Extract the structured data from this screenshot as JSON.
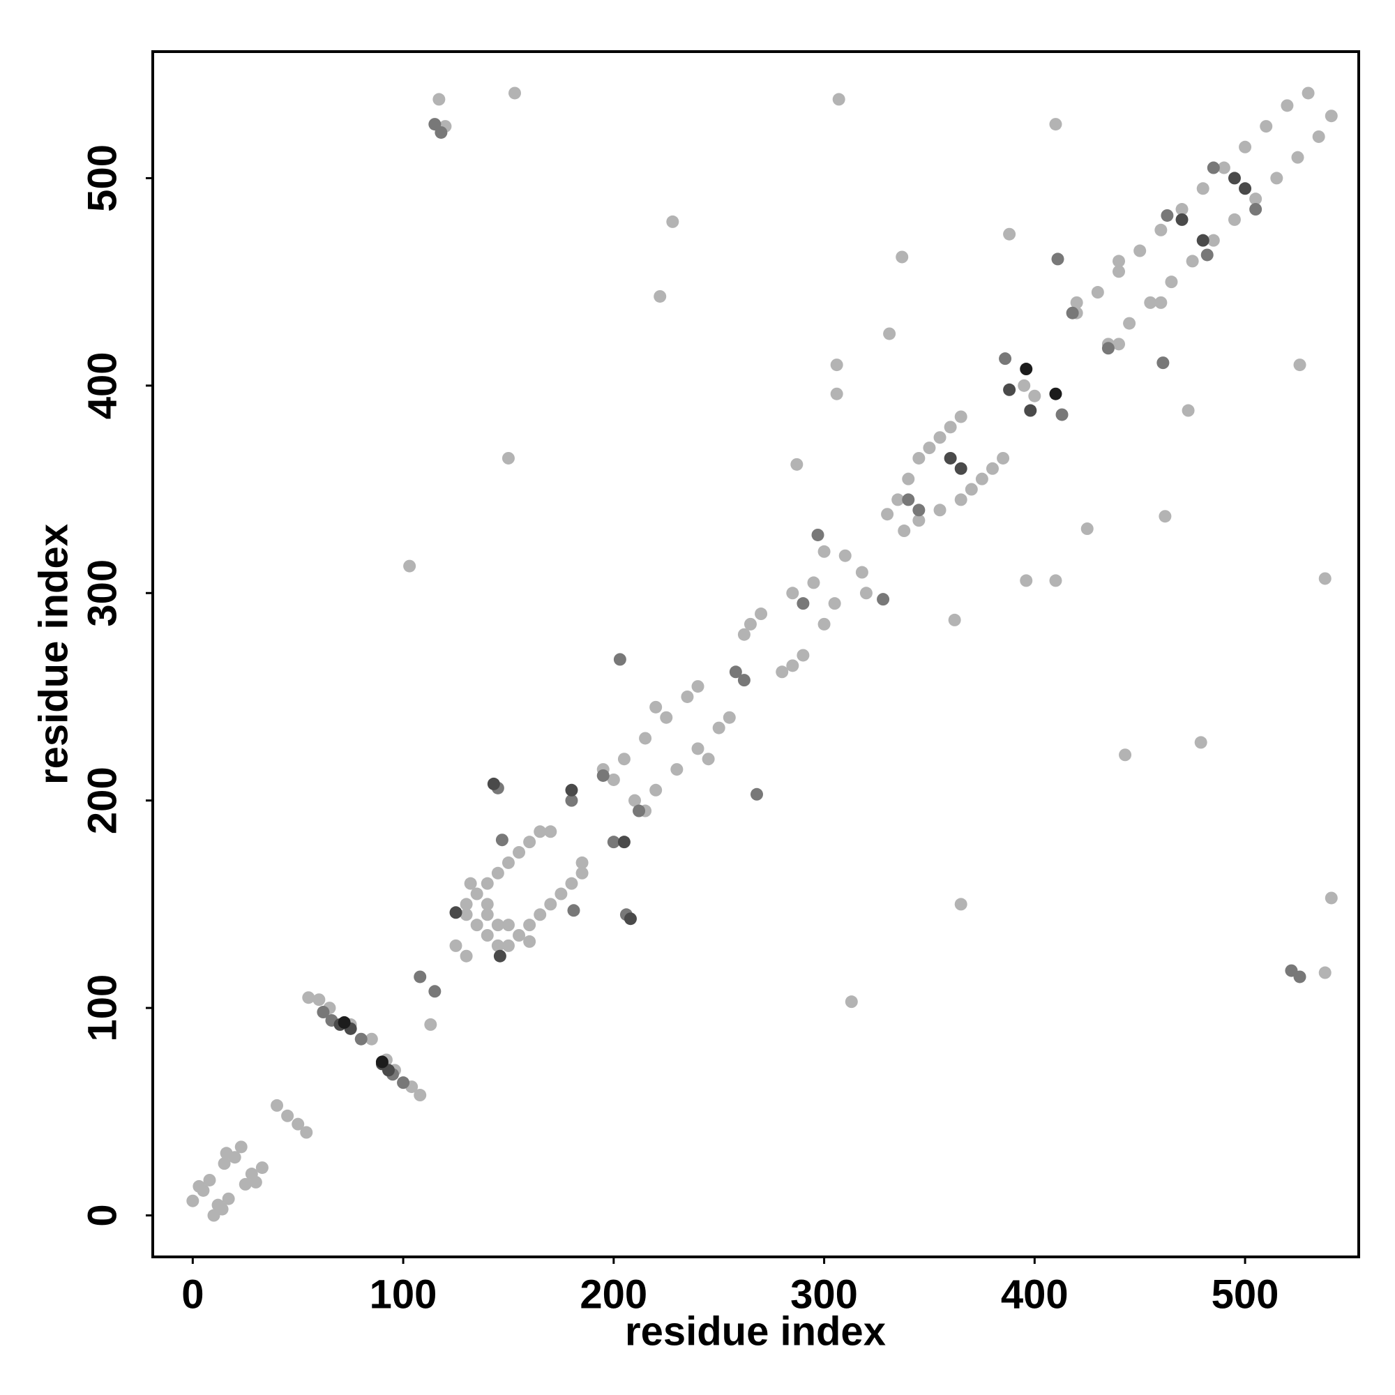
{
  "chart_data": {
    "type": "scatter",
    "xlabel": "residue index",
    "ylabel": "residue index",
    "xlim": [
      -19,
      554
    ],
    "ylim": [
      -20,
      561
    ],
    "xticks": [
      0,
      100,
      200,
      300,
      400,
      500
    ],
    "yticks": [
      0,
      100,
      200,
      300,
      400,
      500
    ],
    "series": [
      {
        "color": "#b3b3b3",
        "x": [
          5,
          12,
          8,
          17,
          15,
          25,
          20,
          28,
          0,
          10,
          14,
          3,
          30,
          16,
          33,
          23,
          40,
          45,
          50,
          54,
          55,
          60,
          65,
          85,
          96,
          104,
          108,
          75,
          92,
          113,
          125,
          130,
          135,
          140,
          130,
          150,
          135,
          155,
          140,
          160,
          145,
          165,
          150,
          170,
          155,
          175,
          160,
          180,
          165,
          185,
          140,
          150,
          145,
          140,
          130,
          145,
          170,
          185,
          132,
          160,
          200,
          210,
          205,
          220,
          215,
          230,
          225,
          240,
          235,
          250,
          220,
          245,
          195,
          215,
          240,
          255,
          265,
          285,
          270,
          290,
          285,
          300,
          295,
          305,
          310,
          318,
          300,
          320,
          262,
          280,
          335,
          345,
          340,
          355,
          345,
          365,
          350,
          370,
          355,
          375,
          360,
          380,
          365,
          385,
          338,
          330,
          395,
          400,
          420,
          435,
          430,
          445,
          440,
          455,
          450,
          465,
          460,
          475,
          470,
          485,
          480,
          495,
          490,
          505,
          500,
          515,
          510,
          525,
          520,
          535,
          530,
          541,
          440,
          420,
          460,
          440,
          117,
          538,
          120,
          153,
          541,
          307,
          538,
          410,
          526,
          228,
          479,
          222,
          443,
          337,
          462,
          313,
          103,
          150,
          365,
          396,
          306,
          410,
          306,
          331,
          425,
          362,
          287,
          473,
          388
        ],
        "y": [
          12,
          5,
          17,
          8,
          25,
          15,
          28,
          20,
          7,
          0,
          3,
          14,
          16,
          30,
          23,
          33,
          53,
          48,
          44,
          40,
          105,
          104,
          100,
          85,
          70,
          62,
          58,
          92,
          75,
          92,
          130,
          125,
          140,
          135,
          150,
          130,
          155,
          135,
          160,
          140,
          165,
          145,
          170,
          150,
          175,
          155,
          180,
          160,
          185,
          165,
          150,
          140,
          140,
          145,
          145,
          130,
          185,
          170,
          160,
          132,
          210,
          200,
          220,
          205,
          230,
          215,
          240,
          225,
          250,
          235,
          245,
          220,
          215,
          195,
          255,
          240,
          285,
          265,
          290,
          270,
          300,
          285,
          305,
          295,
          318,
          310,
          320,
          300,
          280,
          262,
          345,
          335,
          355,
          340,
          365,
          345,
          370,
          350,
          375,
          355,
          380,
          360,
          385,
          365,
          330,
          338,
          400,
          395,
          435,
          420,
          445,
          430,
          455,
          440,
          465,
          450,
          475,
          460,
          485,
          470,
          495,
          480,
          505,
          490,
          515,
          500,
          525,
          510,
          535,
          520,
          541,
          530,
          420,
          440,
          440,
          460,
          538,
          117,
          525,
          541,
          153,
          538,
          307,
          526,
          410,
          479,
          228,
          443,
          222,
          462,
          337,
          103,
          313,
          365,
          150,
          306,
          396,
          306,
          410,
          425,
          331,
          287,
          362,
          388,
          473
        ]
      },
      {
        "color": "#787878",
        "x": [
          62,
          66,
          80,
          95,
          100,
          108,
          115,
          145,
          206,
          147,
          181,
          180,
          200,
          212,
          195,
          258,
          262,
          268,
          203,
          297,
          328,
          290,
          345,
          340,
          386,
          413,
          411,
          461,
          418,
          435,
          463,
          482,
          505,
          485,
          522,
          118,
          526,
          115
        ],
        "y": [
          98,
          94,
          85,
          68,
          64,
          115,
          108,
          206,
          145,
          181,
          147,
          200,
          180,
          195,
          212,
          262,
          258,
          203,
          268,
          328,
          297,
          295,
          340,
          345,
          413,
          386,
          461,
          411,
          435,
          418,
          482,
          463,
          485,
          505,
          118,
          522,
          115,
          526
        ]
      },
      {
        "color": "#4a4a4a",
        "x": [
          70,
          75,
          90,
          93,
          208,
          143,
          146,
          125,
          205,
          180,
          360,
          365,
          398,
          388,
          500,
          495,
          470,
          480
        ],
        "y": [
          92,
          90,
          73,
          70,
          143,
          208,
          125,
          146,
          180,
          205,
          365,
          360,
          388,
          398,
          495,
          500,
          480,
          470
        ]
      },
      {
        "color": "#1c1c1c",
        "x": [
          72,
          90,
          396,
          410
        ],
        "y": [
          93,
          74,
          408,
          396
        ]
      }
    ]
  }
}
